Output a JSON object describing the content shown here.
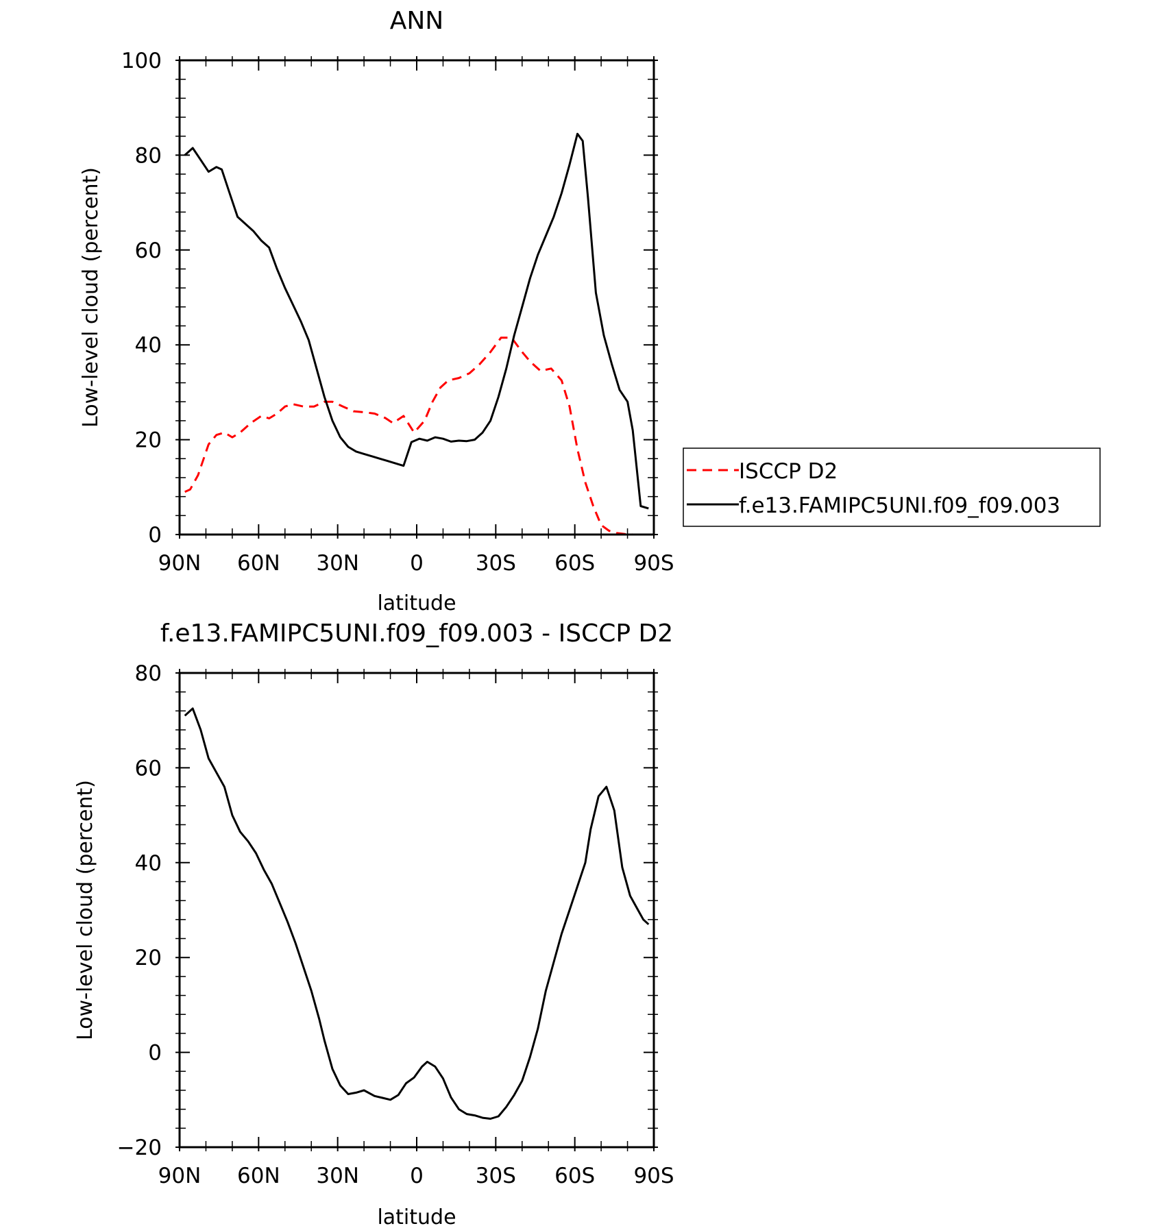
{
  "figure": {
    "legend_position": "right of top panel"
  },
  "chart_data": [
    {
      "type": "line",
      "title": "ANN",
      "xlabel": "latitude",
      "ylabel": "Low-level cloud (percent)",
      "xlim": [
        90,
        -90
      ],
      "ylim": [
        0,
        100
      ],
      "xticks": [
        90,
        60,
        30,
        0,
        -30,
        -60,
        -90
      ],
      "xtick_labels": [
        "90N",
        "60N",
        "30N",
        "0",
        "30S",
        "60S",
        "90S"
      ],
      "yticks": [
        0,
        20,
        40,
        60,
        80,
        100
      ],
      "ytick_labels": [
        "0",
        "20",
        "40",
        "60",
        "80",
        "100"
      ],
      "grid": false,
      "series": [
        {
          "name": "ISCCP D2",
          "color": "#ff0000",
          "dash": "dashed",
          "x": [
            88,
            86,
            83,
            79,
            76,
            73,
            70,
            67,
            63,
            59,
            56,
            53,
            50,
            47,
            43,
            39,
            35,
            32,
            28,
            24,
            20,
            16,
            12,
            9,
            5,
            1,
            -3,
            -6,
            -9,
            -12,
            -16,
            -20,
            -24,
            -28,
            -32,
            -36,
            -40,
            -43,
            -47,
            -51,
            -55,
            -58,
            -61,
            -64,
            -67,
            -70,
            -73,
            -76,
            -79,
            -82,
            -86,
            -88
          ],
          "y": [
            9,
            9.5,
            12.5,
            19,
            21,
            21.5,
            20.5,
            21.5,
            23.5,
            25,
            24.5,
            25.5,
            27,
            27.5,
            27,
            27,
            28,
            28,
            27,
            26,
            25.8,
            25.5,
            24.6,
            23.5,
            25,
            21.5,
            24,
            28,
            31,
            32.5,
            33,
            34,
            36,
            38.5,
            41.5,
            41.5,
            38.5,
            36.5,
            34.5,
            35,
            32.5,
            27,
            18,
            11,
            6,
            2,
            0.8,
            0.3,
            0.1,
            0,
            0,
            0
          ]
        },
        {
          "name": "f.e13.FAMIPC5UNI.f09_f09.003",
          "color": "#000000",
          "dash": "solid",
          "x": [
            88,
            85,
            82,
            79,
            76,
            74,
            71,
            68,
            65,
            62,
            59,
            56,
            53,
            50,
            47,
            44,
            41,
            38,
            35,
            32,
            29,
            26,
            23,
            20,
            17,
            14,
            11,
            8,
            5,
            2,
            -1,
            -4,
            -7,
            -10,
            -13,
            -16,
            -19,
            -22,
            -25,
            -28,
            -31,
            -34,
            -37,
            -40,
            -43,
            -46,
            -49,
            -52,
            -55,
            -58,
            -61,
            -63,
            -65,
            -68,
            -71,
            -74,
            -77,
            -80,
            -82,
            -85,
            -88
          ],
          "y": [
            80,
            81.5,
            79,
            76.5,
            77.5,
            77,
            72,
            67,
            65.5,
            64,
            62,
            60.5,
            56,
            52,
            48.5,
            45,
            41,
            35,
            29,
            24,
            20.5,
            18.5,
            17.5,
            17,
            16.5,
            16,
            15.5,
            15,
            14.5,
            19.5,
            20.2,
            19.8,
            20.5,
            20.2,
            19.6,
            19.8,
            19.7,
            20,
            21.5,
            24,
            29,
            35,
            42,
            48,
            54,
            59,
            63,
            67,
            72,
            78,
            84.5,
            83,
            71,
            51,
            42,
            36,
            30.5,
            28,
            22,
            6,
            5.5
          ]
        }
      ],
      "legend": [
        {
          "label": "ISCCP D2",
          "color": "#ff0000",
          "dash": "dashed"
        },
        {
          "label": "f.e13.FAMIPC5UNI.f09_f09.003",
          "color": "#000000",
          "dash": "solid"
        }
      ]
    },
    {
      "type": "line",
      "title": "f.e13.FAMIPC5UNI.f09_f09.003 - ISCCP D2",
      "xlabel": "latitude",
      "ylabel": "Low-level cloud (percent)",
      "xlim": [
        90,
        -90
      ],
      "ylim": [
        -20,
        80
      ],
      "xticks": [
        90,
        60,
        30,
        0,
        -30,
        -60,
        -90
      ],
      "xtick_labels": [
        "90N",
        "60N",
        "30N",
        "0",
        "30S",
        "60S",
        "90S"
      ],
      "yticks": [
        -20,
        0,
        20,
        40,
        60,
        80
      ],
      "ytick_labels": [
        "−20",
        "0",
        "20",
        "40",
        "60",
        "80"
      ],
      "grid": false,
      "series": [
        {
          "color": "#000000",
          "dash": "solid",
          "x": [
            88,
            85,
            82,
            79,
            76,
            73,
            70,
            67,
            64,
            61,
            58,
            55,
            52,
            49,
            46,
            43,
            40,
            37,
            35,
            32,
            29,
            26,
            23,
            20,
            16,
            13,
            10,
            7,
            4,
            1,
            -2,
            -4,
            -7,
            -10,
            -13,
            -16,
            -19,
            -22,
            -25,
            -28,
            -31,
            -34,
            -37,
            -40,
            -43,
            -46,
            -49,
            -52,
            -55,
            -58,
            -61,
            -64,
            -66,
            -69,
            -72,
            -75,
            -78,
            -81,
            -84,
            -86,
            -88
          ],
          "y": [
            71,
            72.5,
            68,
            62,
            59,
            56,
            50,
            46.5,
            44.5,
            42,
            38.5,
            35.5,
            31.5,
            27.5,
            23,
            18,
            13,
            7,
            2.5,
            -3.5,
            -7,
            -8.8,
            -8.5,
            -8,
            -9.2,
            -9.6,
            -10,
            -9,
            -6.5,
            -5.3,
            -3,
            -2,
            -3,
            -5.5,
            -9.5,
            -12,
            -13,
            -13.3,
            -13.8,
            -14,
            -13.5,
            -11.5,
            -9,
            -6,
            -1,
            5,
            13,
            19,
            25,
            30,
            35,
            40,
            47,
            54,
            56,
            51,
            39,
            33,
            30,
            28,
            27
          ]
        }
      ]
    }
  ]
}
